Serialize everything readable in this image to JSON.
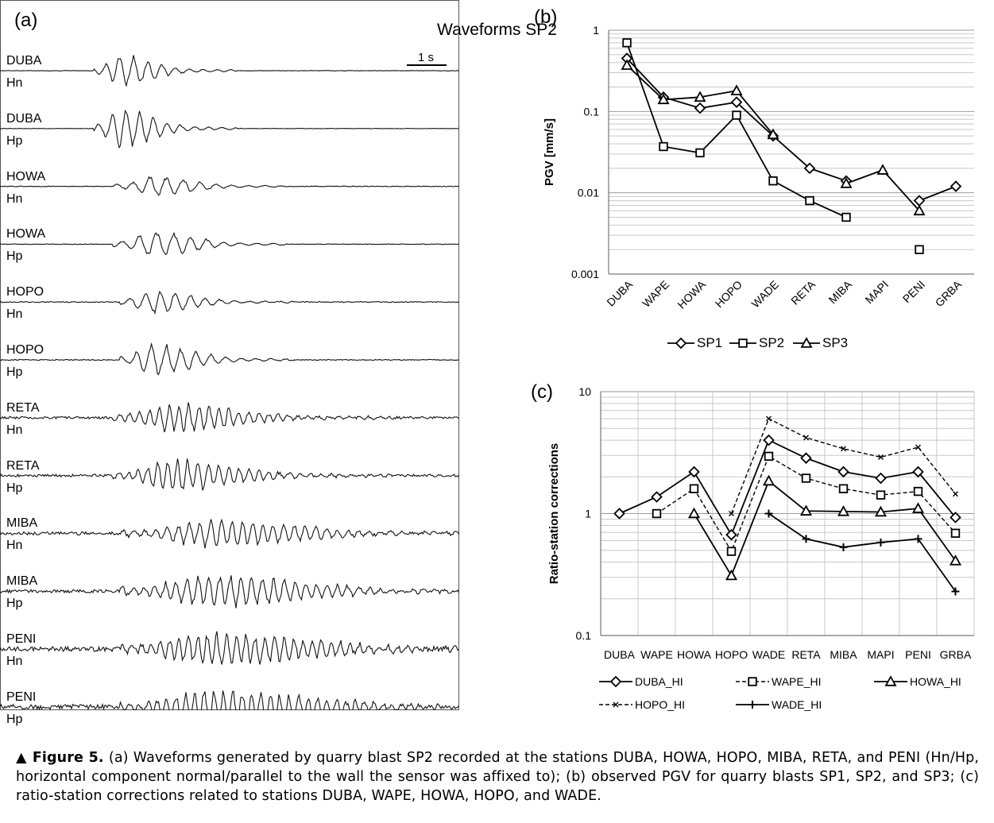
{
  "panel_a": {
    "letter": "(a)",
    "title": "Waveforms SP2",
    "scale_bar_label": "1 s",
    "traces": [
      {
        "station": "DUBA",
        "component": "Hn"
      },
      {
        "station": "DUBA",
        "component": "Hp"
      },
      {
        "station": "HOWA",
        "component": "Hn"
      },
      {
        "station": "HOWA",
        "component": "Hp"
      },
      {
        "station": "HOPO",
        "component": "Hn"
      },
      {
        "station": "HOPO",
        "component": "Hp"
      },
      {
        "station": "RETA",
        "component": "Hn"
      },
      {
        "station": "RETA",
        "component": "Hp"
      },
      {
        "station": "MIBA",
        "component": "Hn"
      },
      {
        "station": "MIBA",
        "component": "Hp"
      },
      {
        "station": "PENI",
        "component": "Hn"
      },
      {
        "station": "PENI",
        "component": "Hp"
      }
    ]
  },
  "chart_data": [
    {
      "panel": "(b)",
      "type": "line",
      "yscale": "log",
      "ylim": [
        0.001,
        1
      ],
      "ylabel": "PGV [mm/s]",
      "yticks": [
        "0.001",
        "0.01",
        "0.1",
        "1"
      ],
      "categories": [
        "DUBA",
        "WAPE",
        "HOWA",
        "HOPO",
        "WADE",
        "RETA",
        "MIBA",
        "MAPI",
        "PENI",
        "GRBA"
      ],
      "grid": true,
      "legend_position": "bottom",
      "series": [
        {
          "name": "SP1",
          "marker": "diamond",
          "values": [
            0.45,
            0.15,
            0.11,
            0.13,
            0.05,
            0.02,
            0.014,
            null,
            0.008,
            0.012
          ]
        },
        {
          "name": "SP2",
          "marker": "square",
          "values": [
            0.7,
            0.037,
            0.031,
            0.09,
            0.014,
            0.008,
            0.005,
            null,
            0.002,
            null
          ]
        },
        {
          "name": "SP3",
          "marker": "triangle",
          "values": [
            0.37,
            0.14,
            0.15,
            0.18,
            0.052,
            null,
            0.013,
            0.019,
            0.006,
            null
          ]
        }
      ]
    },
    {
      "panel": "(c)",
      "type": "line",
      "yscale": "log",
      "ylim": [
        0.1,
        10
      ],
      "ylabel": "Ratio-station corrections",
      "yticks": [
        "0.1",
        "1",
        "10"
      ],
      "categories": [
        "DUBA",
        "WAPE",
        "HOWA",
        "HOPO",
        "WADE",
        "RETA",
        "MIBA",
        "MAPI",
        "PENI",
        "GRBA"
      ],
      "grid": true,
      "legend_position": "bottom",
      "series": [
        {
          "name": "DUBA_HI",
          "marker": "diamond",
          "dash": "solid",
          "values": [
            1,
            1.37,
            2.2,
            0.67,
            4.0,
            2.85,
            2.2,
            1.95,
            2.2,
            0.93
          ]
        },
        {
          "name": "WAPE_HI",
          "marker": "square",
          "dash": "dashed",
          "values": [
            null,
            1,
            1.6,
            0.49,
            2.95,
            1.95,
            1.6,
            1.42,
            1.52,
            0.69
          ]
        },
        {
          "name": "HOWA_HI",
          "marker": "triangle",
          "dash": "solid",
          "values": [
            null,
            null,
            1,
            0.31,
            1.85,
            1.05,
            1.04,
            1.03,
            1.1,
            0.41
          ]
        },
        {
          "name": "HOPO_HI",
          "marker": "x",
          "dash": "dashed",
          "values": [
            null,
            null,
            null,
            1,
            6.0,
            4.2,
            3.4,
            2.9,
            3.5,
            1.45
          ]
        },
        {
          "name": "WADE_HI",
          "marker": "plus",
          "dash": "solid",
          "values": [
            null,
            null,
            null,
            null,
            1,
            0.62,
            0.53,
            0.58,
            0.62,
            0.23
          ]
        }
      ]
    }
  ],
  "caption": {
    "lead": "▲ Figure 5.",
    "text": " (a) Waveforms generated by quarry blast SP2 recorded at the stations DUBA, HOWA, HOPO, MIBA, RETA, and PENI (Hn/Hp, horizontal component normal/parallel to the wall the sensor was affixed to); (b) observed PGV for quarry blasts SP1, SP2, and SP3; (c) ratio-station corrections related to stations DUBA, WAPE, HOWA, HOPO, and WADE."
  }
}
